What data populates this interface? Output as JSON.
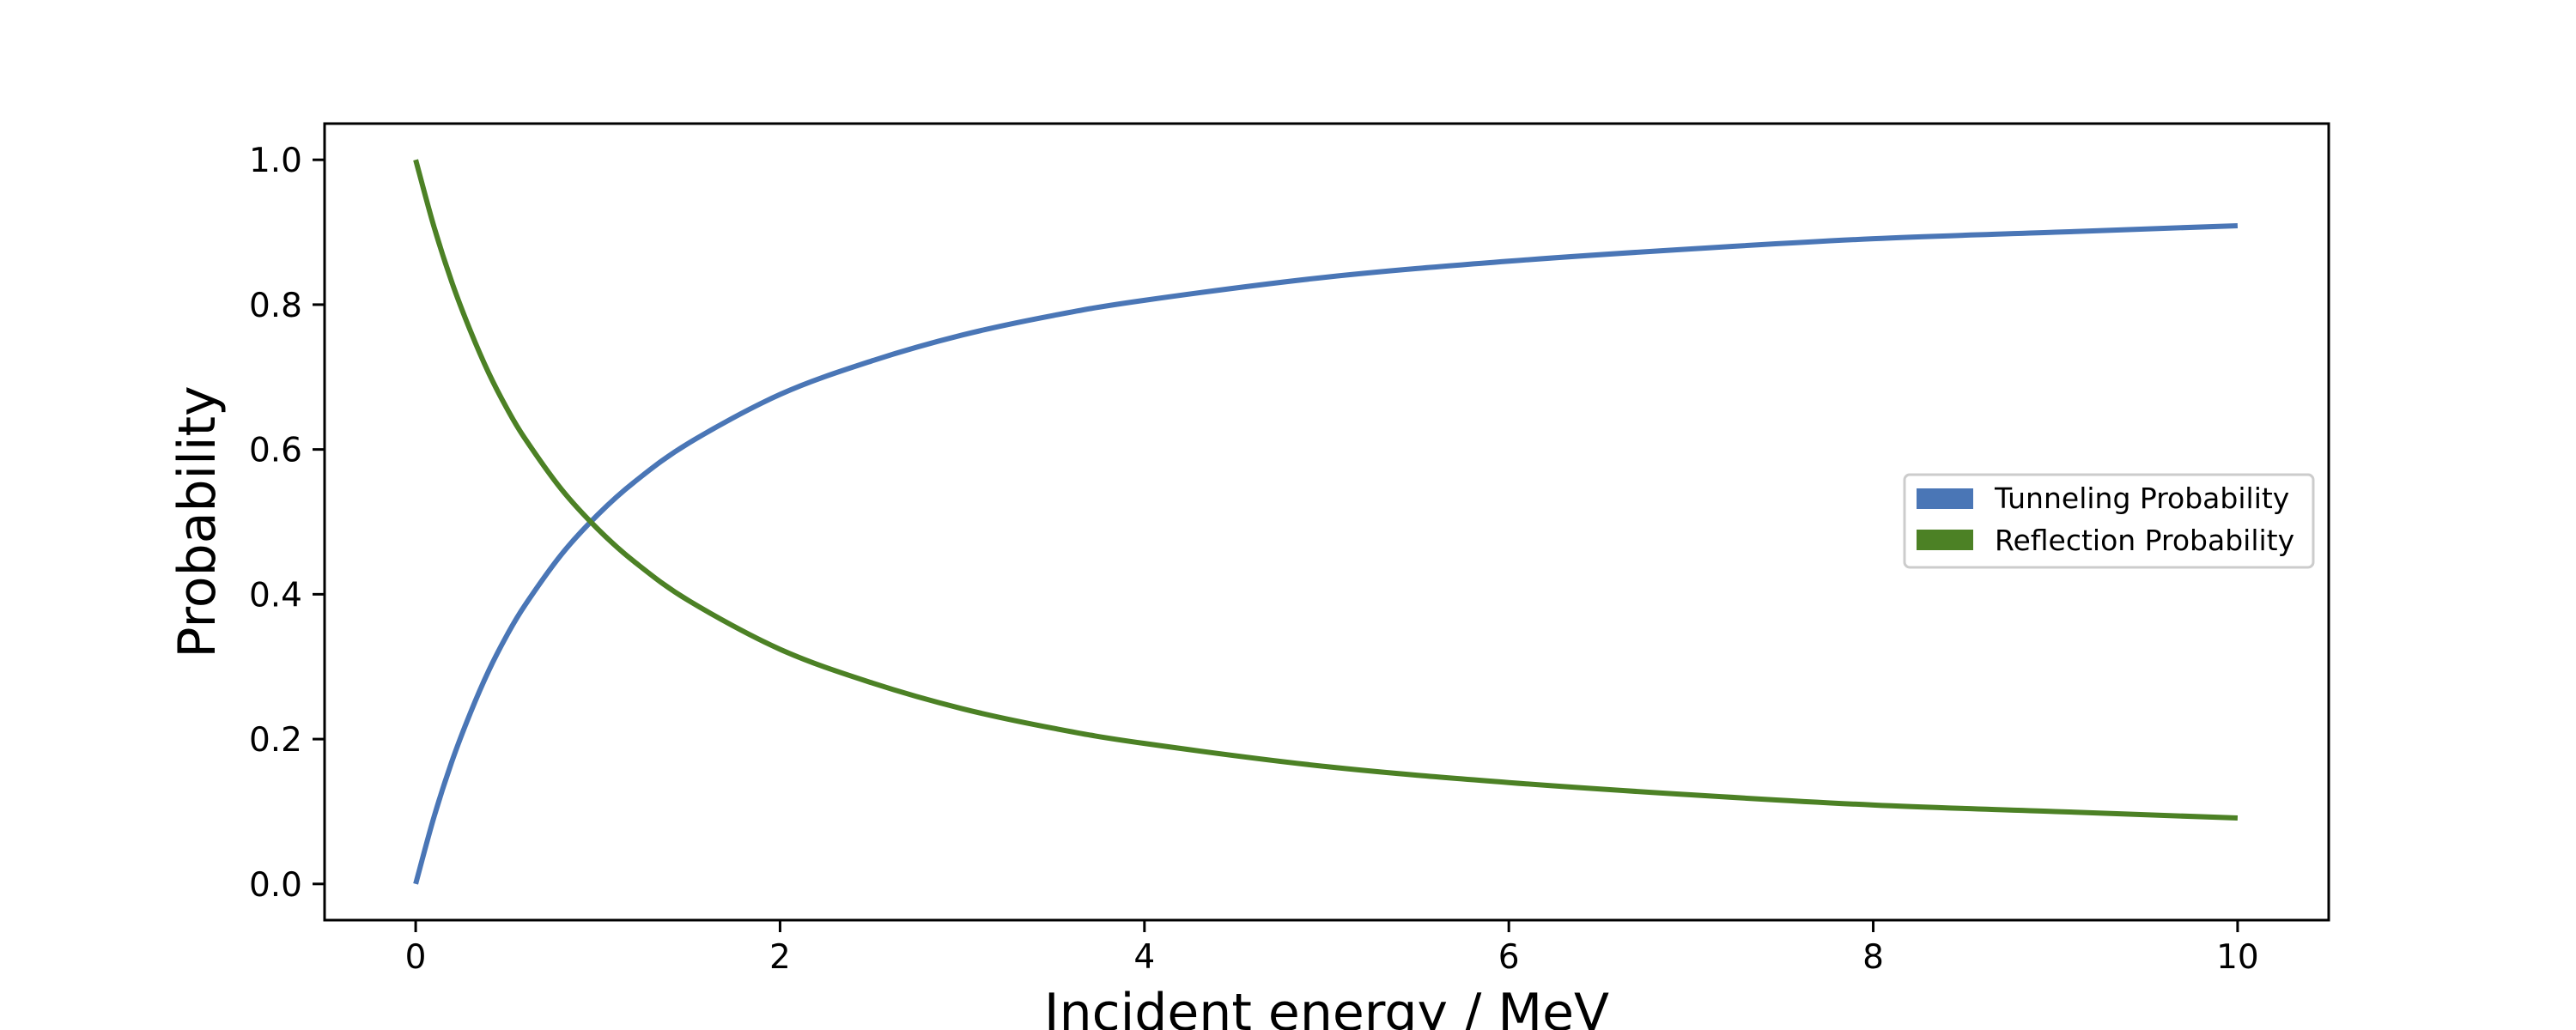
{
  "chart_data": {
    "type": "line",
    "title": "",
    "xlabel": "Incident energy / MeV",
    "ylabel": "Probability",
    "xlim": [
      -0.5,
      10.5
    ],
    "ylim": [
      -0.05,
      1.05
    ],
    "x_ticks": [
      0,
      2,
      4,
      6,
      8,
      10
    ],
    "x_tick_labels": [
      "0",
      "2",
      "4",
      "6",
      "8",
      "10"
    ],
    "y_ticks": [
      0.0,
      0.2,
      0.4,
      0.6,
      0.8,
      1.0
    ],
    "y_tick_labels": [
      "0.0",
      "0.2",
      "0.4",
      "0.6",
      "0.8",
      "1.0"
    ],
    "grid": false,
    "legend_position": "center-right",
    "x": [
      0,
      0.1,
      0.2,
      0.3,
      0.4,
      0.5,
      0.6,
      0.8,
      1.0,
      1.2,
      1.5,
      2.0,
      2.5,
      3.0,
      3.5,
      4.0,
      5.0,
      6.0,
      7.0,
      8.0,
      9.0,
      10.0
    ],
    "series": [
      {
        "name": "Tunneling Probability",
        "color": "#4a76b6",
        "values": [
          0.0,
          0.092,
          0.17,
          0.236,
          0.294,
          0.343,
          0.385,
          0.455,
          0.51,
          0.555,
          0.609,
          0.676,
          0.722,
          0.758,
          0.785,
          0.806,
          0.838,
          0.86,
          0.877,
          0.891,
          0.9,
          0.909
        ]
      },
      {
        "name": "Reflection Probability",
        "color": "#4c8125",
        "values": [
          1.0,
          0.908,
          0.83,
          0.764,
          0.706,
          0.657,
          0.615,
          0.545,
          0.49,
          0.445,
          0.391,
          0.324,
          0.278,
          0.242,
          0.215,
          0.194,
          0.162,
          0.14,
          0.123,
          0.109,
          0.1,
          0.091
        ]
      }
    ]
  }
}
